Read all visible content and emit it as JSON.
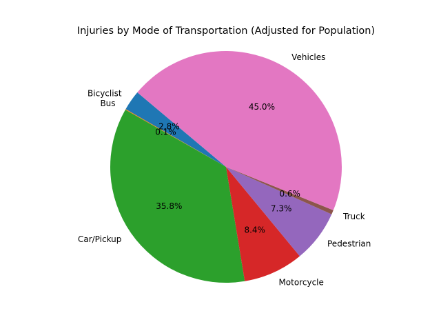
{
  "chart_data": {
    "type": "pie",
    "title": "Injuries by Mode of Transportation (Adjusted for Population)",
    "start_angle_deg": 140,
    "direction": "counterclockwise",
    "legend": "none",
    "slices": [
      {
        "label": "Bicyclist",
        "value": 2.8,
        "pct_label": "2.8%",
        "color": "#1f77b4"
      },
      {
        "label": "Bus",
        "value": 0.1,
        "pct_label": "0.1%",
        "color": "#ff7f0e"
      },
      {
        "label": "Car/Pickup",
        "value": 35.8,
        "pct_label": "35.8%",
        "color": "#2ca02c"
      },
      {
        "label": "Motorcycle",
        "value": 8.4,
        "pct_label": "8.4%",
        "color": "#d62728"
      },
      {
        "label": "Pedestrian",
        "value": 7.3,
        "pct_label": "7.3%",
        "color": "#9467bd"
      },
      {
        "label": "Truck",
        "value": 0.6,
        "pct_label": "0.6%",
        "color": "#8c564b"
      },
      {
        "label": "Vehicles",
        "value": 45.0,
        "pct_label": "45.0%",
        "color": "#e377c2"
      }
    ]
  }
}
